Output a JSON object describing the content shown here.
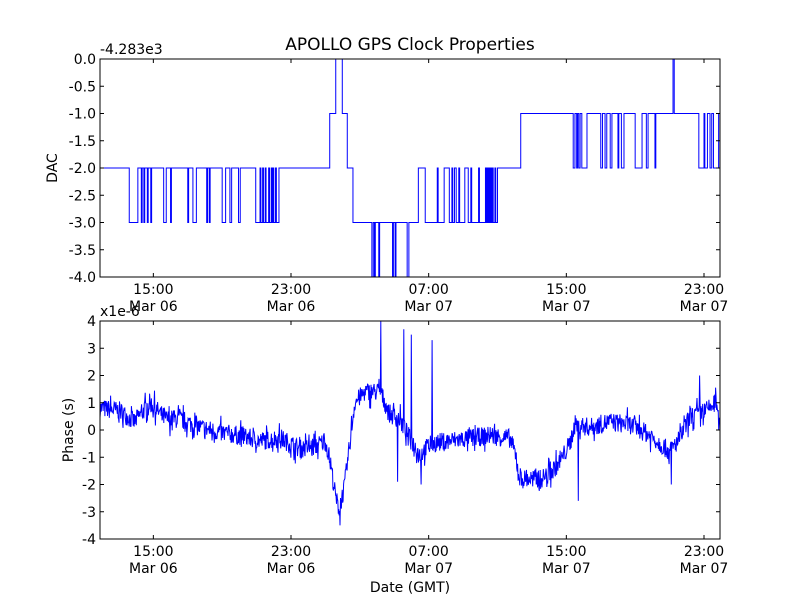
{
  "chart_data": [
    {
      "type": "line",
      "title": "APOLLO GPS Clock Properties",
      "ylabel": "DAC",
      "xlabel": "",
      "offset_text": "-4.283e3",
      "x_units": "hours since Mar 06 00:00 GMT",
      "xlim": [
        11.9,
        47.93
      ],
      "ylim": [
        -4.0,
        0.0
      ],
      "yticks": [
        0.0,
        -0.5,
        -1.0,
        -1.5,
        -2.0,
        -2.5,
        -3.0,
        -3.5,
        -4.0
      ],
      "ytick_labels": [
        "0.0",
        "-0.5",
        "-1.0",
        "-1.5",
        "-2.0",
        "-2.5",
        "-3.0",
        "-3.5",
        "-4.0"
      ],
      "xticks": [
        15,
        23,
        31,
        39,
        47
      ],
      "xtick_labels": [
        [
          "15:00",
          "Mar 06"
        ],
        [
          "23:00",
          "Mar 06"
        ],
        [
          "07:00",
          "Mar 07"
        ],
        [
          "15:00",
          "Mar 07"
        ],
        [
          "23:00",
          "Mar 07"
        ]
      ],
      "color": "#0000ff",
      "step": true,
      "series": [
        {
          "name": "DAC",
          "points": [
            [
              11.9,
              -2
            ],
            [
              13.6,
              -3
            ],
            [
              14.1,
              -2
            ],
            [
              14.3,
              -3
            ],
            [
              14.35,
              -2
            ],
            [
              14.45,
              -3
            ],
            [
              14.5,
              -2
            ],
            [
              14.65,
              -3
            ],
            [
              14.7,
              -2
            ],
            [
              14.85,
              -3
            ],
            [
              14.9,
              -2
            ],
            [
              15.6,
              -3
            ],
            [
              15.75,
              -2
            ],
            [
              16.0,
              -3
            ],
            [
              16.05,
              -2
            ],
            [
              17.0,
              -3
            ],
            [
              17.05,
              -2
            ],
            [
              17.3,
              -3
            ],
            [
              17.5,
              -2
            ],
            [
              18.1,
              -3
            ],
            [
              18.15,
              -2
            ],
            [
              18.25,
              -3
            ],
            [
              18.3,
              -2
            ],
            [
              19.0,
              -3
            ],
            [
              19.2,
              -2
            ],
            [
              19.45,
              -3
            ],
            [
              19.55,
              -2
            ],
            [
              19.95,
              -3
            ],
            [
              20.05,
              -2
            ],
            [
              20.95,
              -3
            ],
            [
              21.2,
              -2
            ],
            [
              21.25,
              -3
            ],
            [
              21.35,
              -2
            ],
            [
              21.4,
              -3
            ],
            [
              21.5,
              -2
            ],
            [
              21.55,
              -3
            ],
            [
              21.7,
              -2
            ],
            [
              21.75,
              -3
            ],
            [
              21.85,
              -2
            ],
            [
              21.9,
              -3
            ],
            [
              21.95,
              -2
            ],
            [
              22.0,
              -3
            ],
            [
              22.1,
              -2
            ],
            [
              22.15,
              -3
            ],
            [
              22.3,
              -2
            ],
            [
              25.25,
              -1
            ],
            [
              25.6,
              0
            ],
            [
              25.98,
              -1
            ],
            [
              26.27,
              -2
            ],
            [
              26.6,
              -3
            ],
            [
              27.7,
              -4
            ],
            [
              27.78,
              -3
            ],
            [
              27.85,
              -4
            ],
            [
              27.9,
              -3
            ],
            [
              28.1,
              -4
            ],
            [
              28.15,
              -3
            ],
            [
              28.9,
              -4
            ],
            [
              28.95,
              -3
            ],
            [
              29.05,
              -4
            ],
            [
              29.1,
              -3
            ],
            [
              29.75,
              -4
            ],
            [
              29.85,
              -3
            ],
            [
              30.4,
              -2
            ],
            [
              30.8,
              -3
            ],
            [
              31.5,
              -2
            ],
            [
              31.55,
              -3
            ],
            [
              31.9,
              -2
            ],
            [
              32.2,
              -3
            ],
            [
              32.35,
              -2
            ],
            [
              32.4,
              -3
            ],
            [
              32.5,
              -2
            ],
            [
              32.6,
              -3
            ],
            [
              32.75,
              -2
            ],
            [
              32.8,
              -3
            ],
            [
              33.1,
              -2
            ],
            [
              33.3,
              -3
            ],
            [
              33.45,
              -2
            ],
            [
              33.5,
              -3
            ],
            [
              33.9,
              -2
            ],
            [
              33.95,
              -3
            ],
            [
              34.3,
              -2
            ],
            [
              34.35,
              -3
            ],
            [
              34.4,
              -2
            ],
            [
              34.45,
              -3
            ],
            [
              34.5,
              -2
            ],
            [
              34.55,
              -3
            ],
            [
              34.6,
              -2
            ],
            [
              34.65,
              -3
            ],
            [
              34.7,
              -2
            ],
            [
              34.75,
              -3
            ],
            [
              34.85,
              -2
            ],
            [
              34.9,
              -3
            ],
            [
              35.0,
              -2
            ],
            [
              36.35,
              -1
            ],
            [
              39.4,
              -2
            ],
            [
              39.5,
              -1
            ],
            [
              39.6,
              -2
            ],
            [
              39.65,
              -1
            ],
            [
              39.72,
              -2
            ],
            [
              39.8,
              -1
            ],
            [
              39.9,
              -2
            ],
            [
              40.2,
              -1
            ],
            [
              41.0,
              -2
            ],
            [
              41.1,
              -1
            ],
            [
              41.25,
              -2
            ],
            [
              41.35,
              -1
            ],
            [
              41.55,
              -2
            ],
            [
              41.65,
              -1
            ],
            [
              42.0,
              -2
            ],
            [
              42.05,
              -1
            ],
            [
              42.2,
              -2
            ],
            [
              42.35,
              -1
            ],
            [
              43.0,
              -2
            ],
            [
              43.4,
              -1
            ],
            [
              43.65,
              -2
            ],
            [
              43.75,
              -1
            ],
            [
              44.15,
              -2
            ],
            [
              44.2,
              -1
            ],
            [
              45.2,
              0
            ],
            [
              45.27,
              -1
            ],
            [
              46.7,
              -2
            ],
            [
              47.0,
              -1
            ],
            [
              47.05,
              -2
            ],
            [
              47.2,
              -1
            ],
            [
              47.35,
              -2
            ],
            [
              47.45,
              -1
            ],
            [
              47.55,
              -2
            ],
            [
              47.85,
              -1
            ],
            [
              47.93,
              -1
            ]
          ]
        }
      ]
    },
    {
      "type": "line",
      "title": "",
      "ylabel": "Phase (s)",
      "xlabel": "Date (GMT)",
      "offset_text": "x1e-6",
      "x_units": "hours since Mar 06 00:00 GMT",
      "xlim": [
        11.9,
        47.93
      ],
      "ylim": [
        -4,
        4
      ],
      "yticks": [
        4,
        3,
        2,
        1,
        0,
        -1,
        -2,
        -3,
        -4
      ],
      "ytick_labels": [
        "4",
        "3",
        "2",
        "1",
        "0",
        "-1",
        "-2",
        "-3",
        "-4"
      ],
      "xticks": [
        15,
        23,
        31,
        39,
        47
      ],
      "xtick_labels": [
        [
          "15:00",
          "Mar 06"
        ],
        [
          "23:00",
          "Mar 06"
        ],
        [
          "07:00",
          "Mar 07"
        ],
        [
          "15:00",
          "Mar 07"
        ],
        [
          "23:00",
          "Mar 07"
        ]
      ],
      "color": "#0000ff",
      "noise_amplitude": 0.35,
      "series": [
        {
          "name": "Phase",
          "trend": [
            [
              11.9,
              0.8
            ],
            [
              13.05,
              0.7
            ],
            [
              13.9,
              0.3
            ],
            [
              14.8,
              1.0
            ],
            [
              15.7,
              0.4
            ],
            [
              16.5,
              0.4
            ],
            [
              17.7,
              0.1
            ],
            [
              18.9,
              -0.1
            ],
            [
              20.0,
              -0.2
            ],
            [
              21.2,
              -0.4
            ],
            [
              22.4,
              -0.3
            ],
            [
              23.5,
              -0.7
            ],
            [
              24.4,
              -0.6
            ],
            [
              25.0,
              -0.4
            ],
            [
              25.3,
              -1.2
            ],
            [
              25.6,
              -2.5
            ],
            [
              25.8,
              -2.9
            ],
            [
              26.1,
              -2.1
            ],
            [
              26.4,
              -0.6
            ],
            [
              26.7,
              1.0
            ],
            [
              27.3,
              1.4
            ],
            [
              28.2,
              1.4
            ],
            [
              28.7,
              0.6
            ],
            [
              29.3,
              0.4
            ],
            [
              29.9,
              -0.3
            ],
            [
              30.5,
              -0.9
            ],
            [
              31.1,
              -0.5
            ],
            [
              32.2,
              -0.4
            ],
            [
              33.4,
              -0.3
            ],
            [
              34.6,
              -0.2
            ],
            [
              35.7,
              -0.3
            ],
            [
              36.0,
              -0.8
            ],
            [
              36.3,
              -1.8
            ],
            [
              37.5,
              -1.8
            ],
            [
              38.0,
              -1.6
            ],
            [
              38.6,
              -1.2
            ],
            [
              39.2,
              -0.5
            ],
            [
              39.5,
              0.2
            ],
            [
              40.4,
              0.1
            ],
            [
              41.5,
              0.3
            ],
            [
              42.7,
              0.2
            ],
            [
              43.9,
              -0.2
            ],
            [
              45.0,
              -0.8
            ],
            [
              45.6,
              -0.3
            ],
            [
              46.2,
              0.5
            ],
            [
              47.1,
              0.7
            ],
            [
              47.7,
              1.0
            ],
            [
              47.93,
              0.0
            ]
          ],
          "spikes": [
            [
              28.22,
              4.0
            ],
            [
              29.55,
              3.7
            ],
            [
              30.0,
              3.5
            ],
            [
              31.2,
              3.3
            ],
            [
              25.85,
              -3.5
            ],
            [
              30.55,
              -2.0
            ],
            [
              29.2,
              -1.9
            ],
            [
              39.7,
              -2.6
            ],
            [
              46.75,
              2.0
            ],
            [
              45.1,
              -2.0
            ]
          ]
        }
      ]
    }
  ]
}
